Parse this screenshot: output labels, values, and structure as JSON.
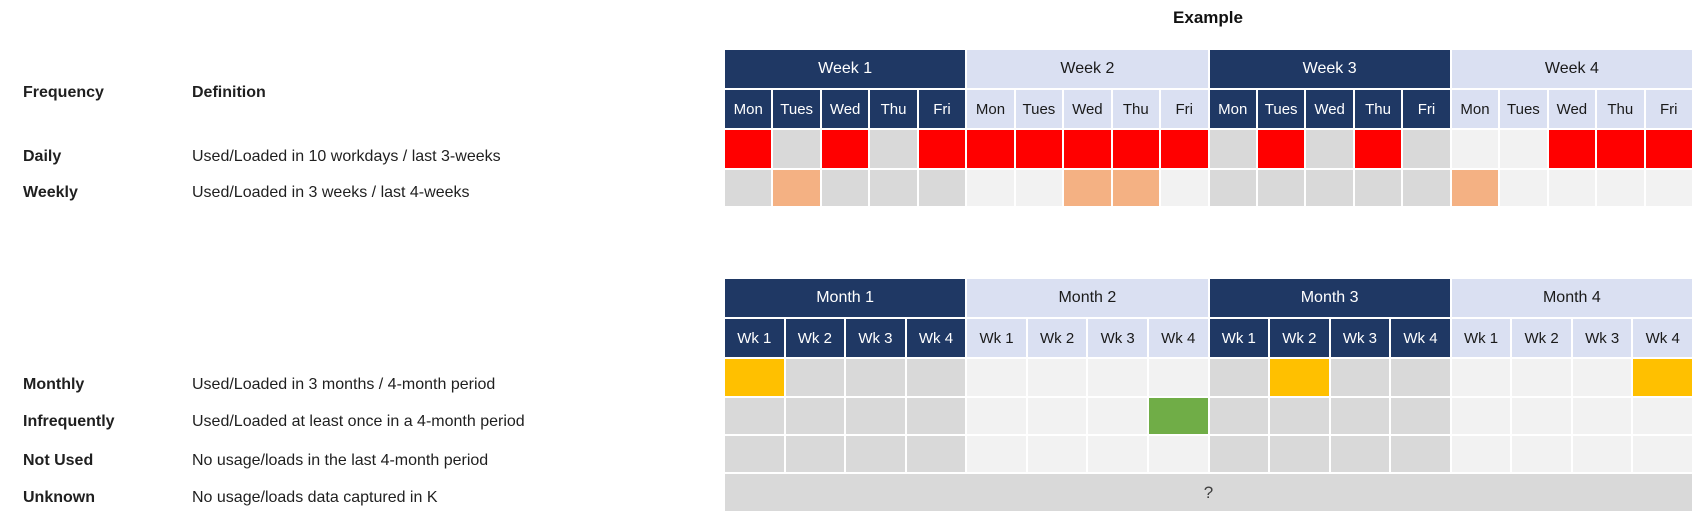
{
  "title": "Example",
  "legend": {
    "header": {
      "frequency": "Frequency",
      "definition": "Definition"
    },
    "items": [
      {
        "name": "Daily",
        "definition": "Used/Loaded in 10 workdays / last 3-weeks"
      },
      {
        "name": "Weekly",
        "definition": "Used/Loaded in 3 weeks / last 4-weeks"
      },
      {
        "name": "Monthly",
        "definition": "Used/Loaded in 3 months / 4-month period"
      },
      {
        "name": "Infrequently",
        "definition": "Used/Loaded at least once in a 4-month period"
      },
      {
        "name": "Not Used",
        "definition": "No usage/loads in the last 4-month period"
      },
      {
        "name": "Unknown",
        "definition": "No usage/loads data captured in K"
      }
    ]
  },
  "colors": {
    "navy": "#1F3864",
    "lavender": "#DAE0F2",
    "red": "#FF0000",
    "orange": "#F4B183",
    "gold": "#FFC000",
    "green": "#70AD47",
    "gray_dark": "#D9D9D9",
    "gray_light": "#F2F2F2",
    "unknown_gray": "#D9D9D9"
  },
  "week_table": {
    "groups": [
      {
        "label": "Week 1",
        "dark": true
      },
      {
        "label": "Week 2",
        "dark": false
      },
      {
        "label": "Week 3",
        "dark": true
      },
      {
        "label": "Week 4",
        "dark": false
      }
    ],
    "day_labels": [
      "Mon",
      "Tues",
      "Wed",
      "Thu",
      "Fri"
    ],
    "rows": [
      {
        "name": "daily",
        "cells": [
          "red",
          "base",
          "red",
          "base",
          "red",
          "red",
          "red",
          "red",
          "red",
          "red",
          "base",
          "red",
          "base",
          "red",
          "base",
          "base",
          "base",
          "red",
          "red",
          "red"
        ]
      },
      {
        "name": "weekly",
        "cells": [
          "base",
          "orange",
          "base",
          "base",
          "base",
          "base",
          "base",
          "orange",
          "orange",
          "base",
          "base",
          "base",
          "base",
          "base",
          "base",
          "orange",
          "base",
          "base",
          "base",
          "base"
        ]
      }
    ]
  },
  "month_table": {
    "groups": [
      {
        "label": "Month 1",
        "dark": true
      },
      {
        "label": "Month 2",
        "dark": false
      },
      {
        "label": "Month 3",
        "dark": true
      },
      {
        "label": "Month 4",
        "dark": false
      }
    ],
    "week_labels": [
      "Wk 1",
      "Wk 2",
      "Wk 3",
      "Wk 4"
    ],
    "rows": [
      {
        "name": "monthly",
        "cells": [
          "gold",
          "base",
          "base",
          "base",
          "base",
          "base",
          "base",
          "base",
          "base",
          "gold",
          "base",
          "base",
          "base",
          "base",
          "base",
          "gold"
        ]
      },
      {
        "name": "infrequently",
        "cells": [
          "base",
          "base",
          "base",
          "base",
          "base",
          "base",
          "base",
          "green",
          "base",
          "base",
          "base",
          "base",
          "base",
          "base",
          "base",
          "base"
        ]
      },
      {
        "name": "not-used",
        "cells": [
          "base",
          "base",
          "base",
          "base",
          "base",
          "base",
          "base",
          "base",
          "base",
          "base",
          "base",
          "base",
          "base",
          "base",
          "base",
          "base"
        ]
      }
    ],
    "unknown_row": {
      "label": "?"
    }
  }
}
